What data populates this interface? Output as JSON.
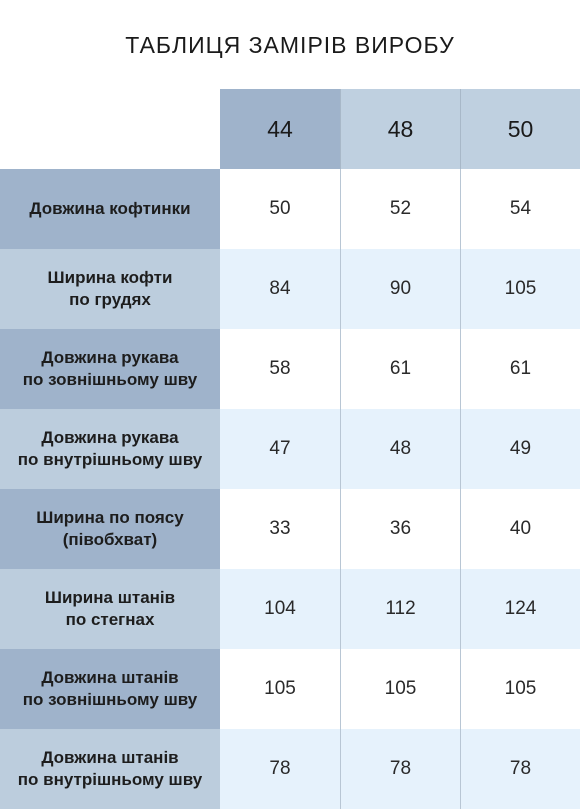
{
  "title": "ТАБЛИЦЯ ЗАМІРІВ ВИРОБУ",
  "sizes": [
    "44",
    "48",
    "50"
  ],
  "rows": [
    {
      "label": "Довжина кофтинки",
      "values": [
        "50",
        "52",
        "54"
      ]
    },
    {
      "label": "Ширина кофти\nпо грудях",
      "values": [
        "84",
        "90",
        "105"
      ]
    },
    {
      "label": "Довжина рукава\nпо зовнішньому шву",
      "values": [
        "58",
        "61",
        "61"
      ]
    },
    {
      "label": "Довжина рукава\nпо внутрішньому шву",
      "values": [
        "47",
        "48",
        "49"
      ]
    },
    {
      "label": "Ширина по поясу\n(півобхват)",
      "values": [
        "33",
        "36",
        "40"
      ]
    },
    {
      "label": "Ширина штанів\nпо стегнах",
      "values": [
        "104",
        "112",
        "124"
      ]
    },
    {
      "label": "Довжина штанів\nпо зовнішньому шву",
      "values": [
        "105",
        "105",
        "105"
      ]
    },
    {
      "label": "Довжина штанів\nпо внутрішньому шву",
      "values": [
        "78",
        "78",
        "78"
      ]
    }
  ],
  "colors": {
    "header_dark": "#9fb3cb",
    "header_light": "#bfd0e0",
    "label_dark": "#9fb3cb",
    "label_light": "#bccddd",
    "row_alt": "#e6f2fc"
  }
}
